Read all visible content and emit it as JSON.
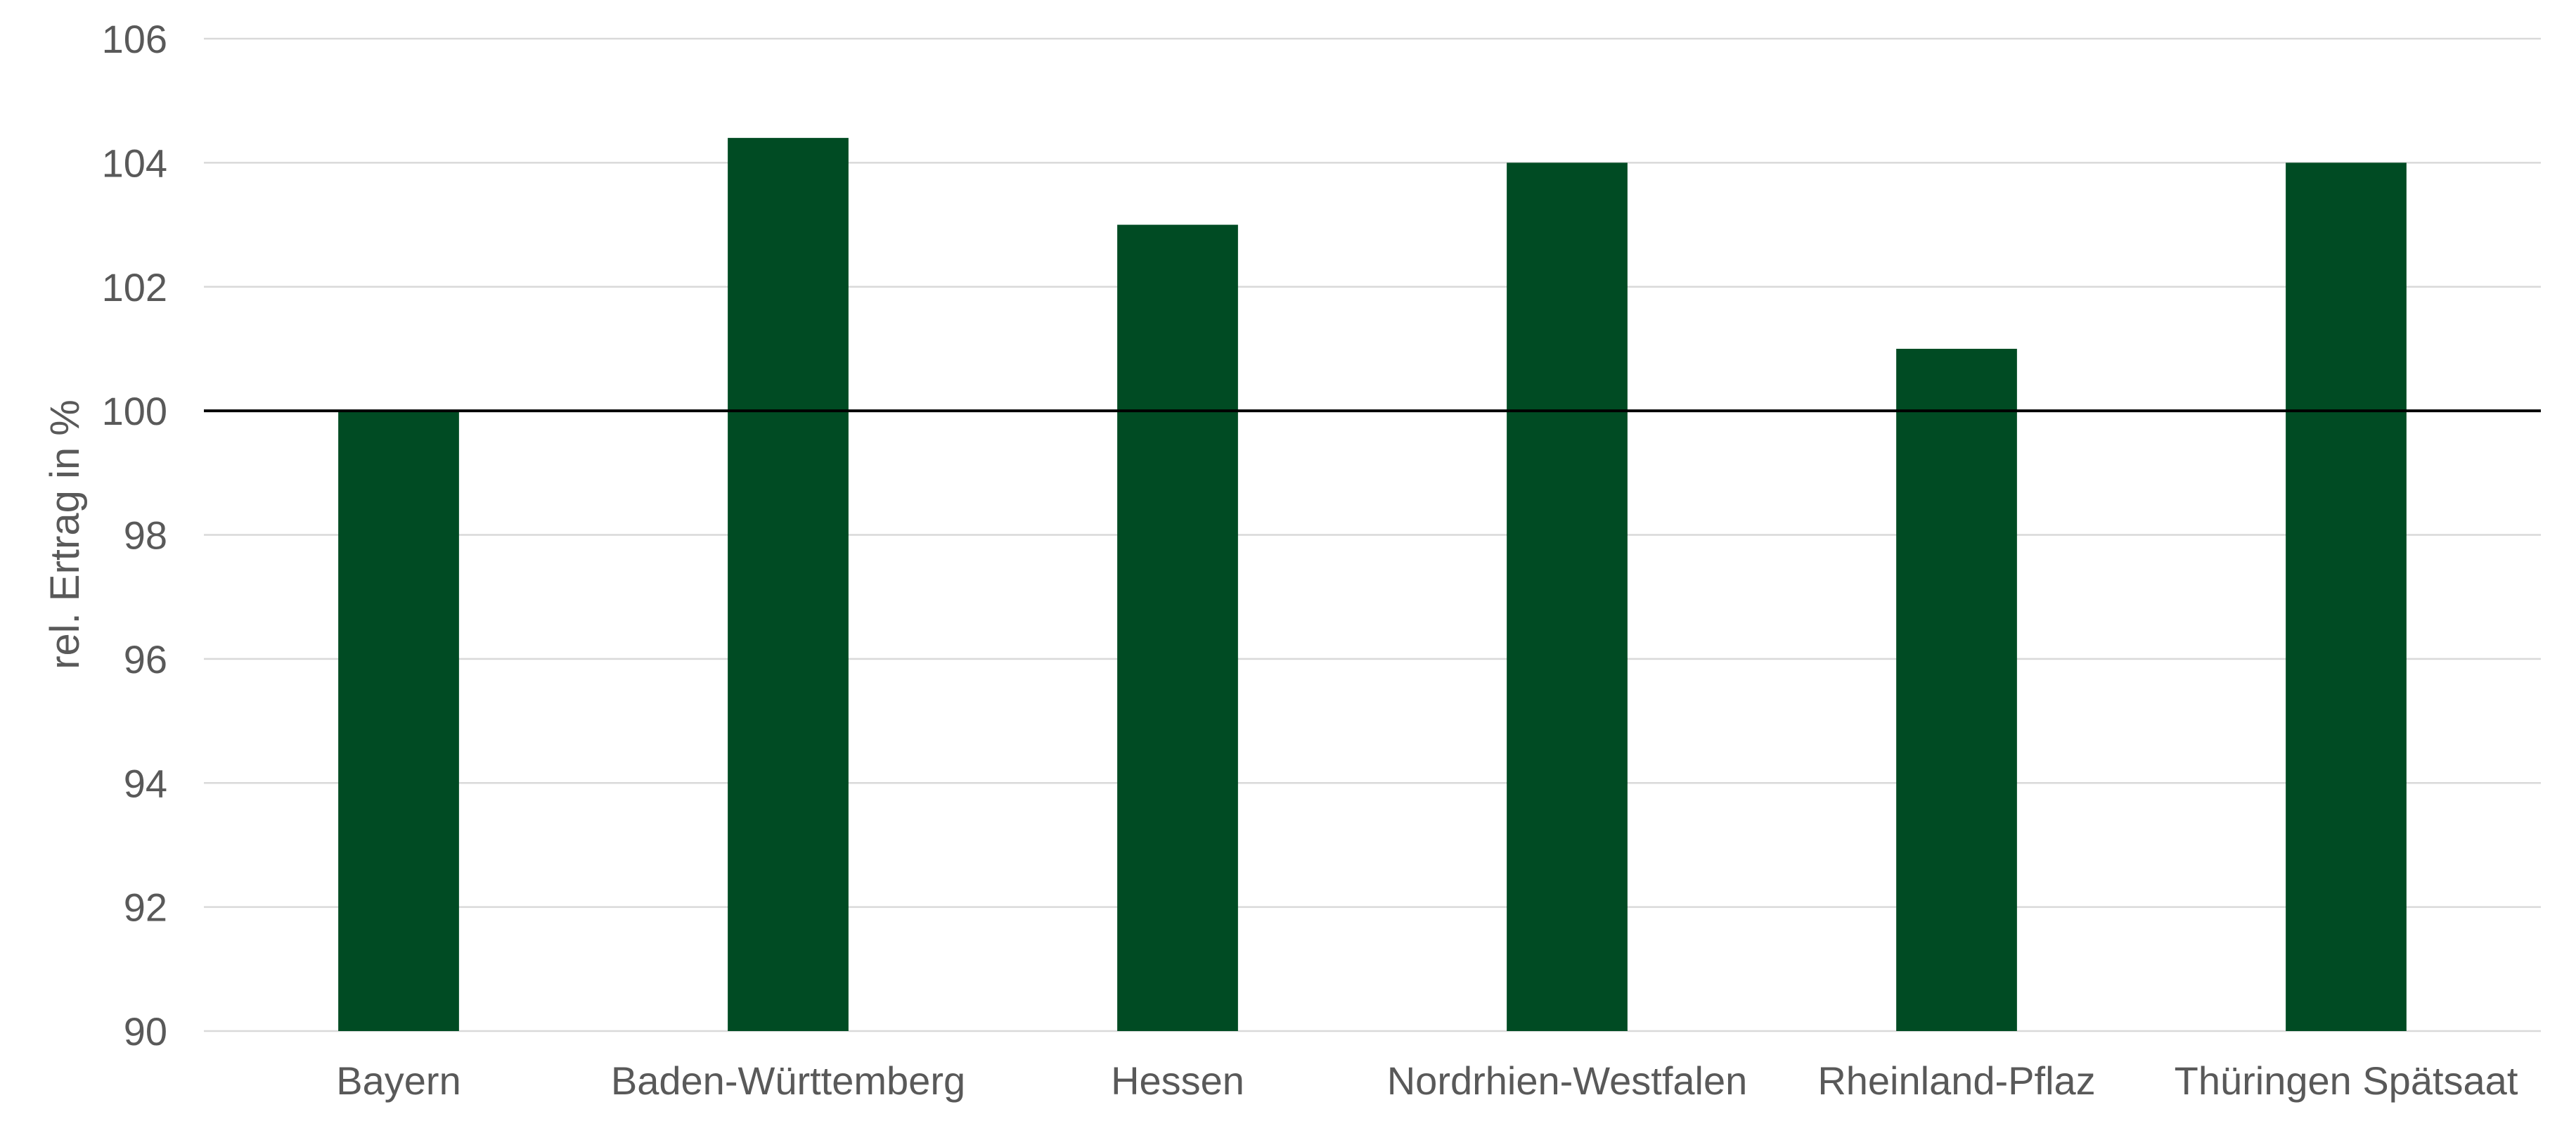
{
  "chart_data": {
    "type": "bar",
    "categories": [
      "Bayern",
      "Baden-Württemberg",
      "Hessen",
      "Nordrhien-Westfalen",
      "Rheinland-Pflaz",
      "Thüringen Spätsaat"
    ],
    "values": [
      100,
      104.4,
      103,
      104,
      101,
      104
    ],
    "ylabel": "rel. Ertrag in %",
    "ylim": [
      90,
      106
    ],
    "yticks": [
      90,
      92,
      94,
      96,
      98,
      100,
      102,
      104,
      106
    ],
    "reference_line": 100,
    "bar_color": "#004b23",
    "grid": true,
    "legend": "none"
  }
}
